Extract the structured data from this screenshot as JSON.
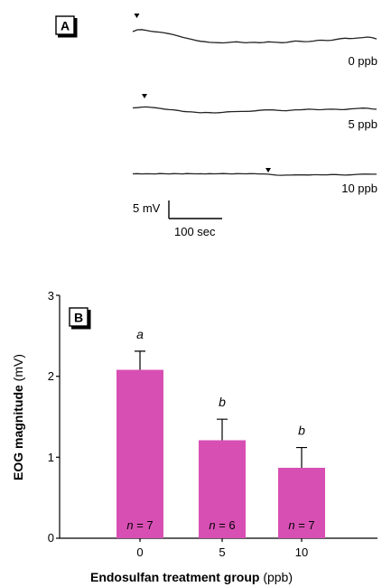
{
  "colors": {
    "bar": "#d84fb4",
    "ink": "#000000",
    "trace": "#222222"
  },
  "panel_a": {
    "label": "A",
    "scale_bar": {
      "voltage_label": "5 mV",
      "time_label": "100 sec"
    },
    "traces": [
      {
        "concentration_label": "0 ppb"
      },
      {
        "concentration_label": "5 ppb"
      },
      {
        "concentration_label": "10 ppb"
      }
    ]
  },
  "chart_data": {
    "type": "bar",
    "panel_label": "B",
    "categories": [
      "0",
      "5",
      "10"
    ],
    "values": [
      2.08,
      1.21,
      0.87
    ],
    "errors": [
      0.23,
      0.26,
      0.25
    ],
    "significance_letters": [
      "a",
      "b",
      "b"
    ],
    "sample_sizes": [
      {
        "prefix": "n",
        "text": " = 7"
      },
      {
        "prefix": "n",
        "text": " = 6"
      },
      {
        "prefix": "n",
        "text": " = 7"
      }
    ],
    "xlabel_bold": "Endosulfan treatment group",
    "xlabel_unit": " (ppb)",
    "ylabel_bold": "EOG magnitude",
    "ylabel_unit": " (mV)",
    "ylim": [
      0,
      3
    ],
    "yticks": [
      "0",
      "1",
      "2",
      "3"
    ],
    "grid": false
  }
}
